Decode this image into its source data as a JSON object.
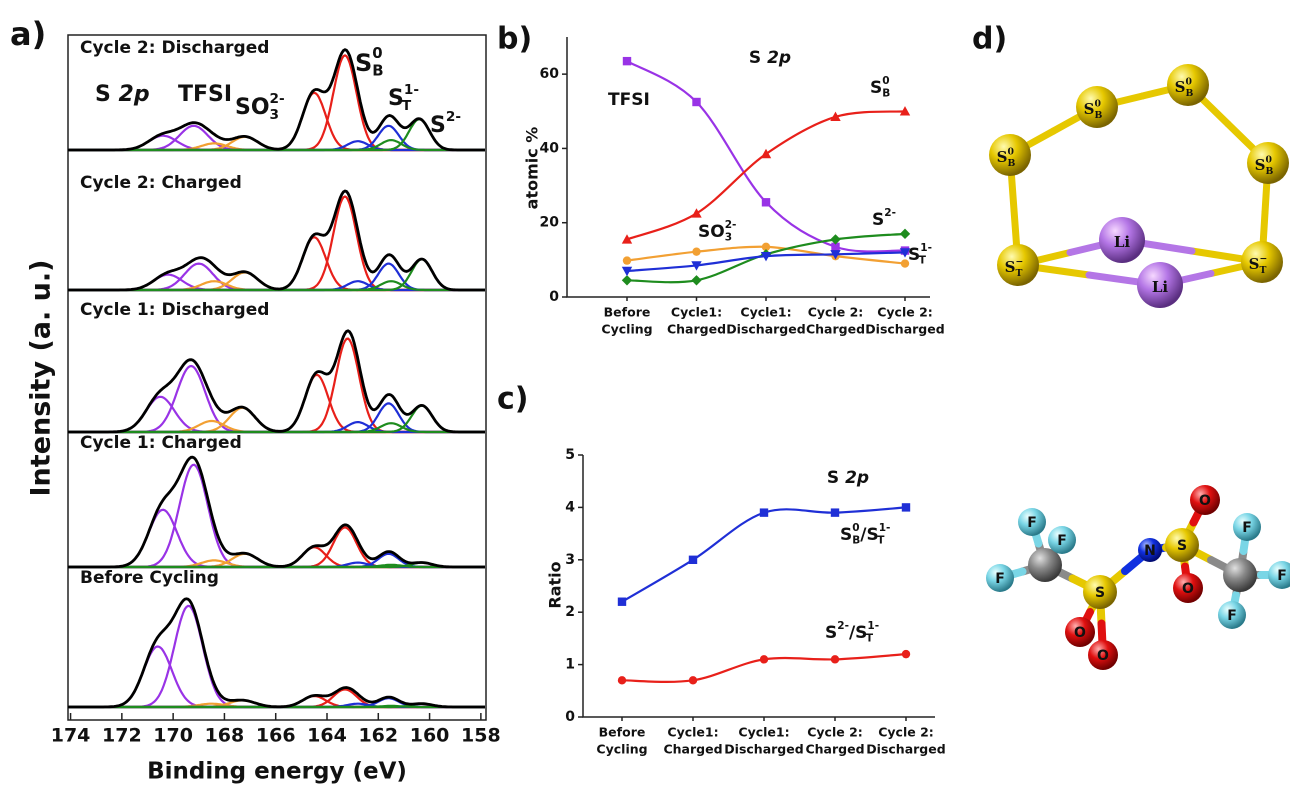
{
  "chart_data": [
    {
      "type": "spectra",
      "panel": "a)",
      "xlabel": "Binding energy (eV)",
      "ylabel": "Intensity (a. u.)",
      "xlim": [
        174.1,
        157.8
      ],
      "xticks": [
        174,
        172,
        170,
        168,
        166,
        164,
        162,
        160,
        158
      ],
      "annotations": [
        {
          "text": [
            {
              "text": "S "
            },
            {
              "text": "2p",
              "italic": true
            }
          ],
          "color": "#111111"
        },
        {
          "text": [
            {
              "text": "TFSI"
            }
          ],
          "color": "#9933e6"
        },
        {
          "text": [
            {
              "text": "SO",
              "sub": "3",
              "sup": "2-"
            }
          ],
          "color": "#f2a033"
        },
        {
          "text": [
            {
              "text": "S",
              "sub": "B",
              "sup": "0"
            }
          ],
          "color": "#e8201a"
        },
        {
          "text": [
            {
              "text": "S",
              "sub": "T",
              "sup": "1-"
            }
          ],
          "color": "#1f2fd6"
        },
        {
          "text": [
            {
              "text": "S",
              "sup": "2-"
            }
          ],
          "color": "#1e8c1e"
        }
      ],
      "spectra": [
        {
          "label": "Cycle 2: Discharged",
          "peaks": [
            {
              "center": 170.4,
              "height": 13,
              "width": 0.55,
              "color": "#9933e6"
            },
            {
              "center": 169.2,
              "height": 22,
              "width": 0.55,
              "color": "#9933e6"
            },
            {
              "center": 168.4,
              "height": 6,
              "width": 0.5,
              "color": "#f2a033"
            },
            {
              "center": 167.2,
              "height": 12,
              "width": 0.5,
              "color": "#f2a033"
            },
            {
              "center": 164.5,
              "height": 52,
              "width": 0.45,
              "color": "#e8201a"
            },
            {
              "center": 163.3,
              "height": 86,
              "width": 0.45,
              "color": "#e8201a"
            },
            {
              "center": 162.8,
              "height": 8,
              "width": 0.4,
              "color": "#1f2fd6"
            },
            {
              "center": 161.6,
              "height": 22,
              "width": 0.4,
              "color": "#1f2fd6"
            },
            {
              "center": 161.5,
              "height": 9,
              "width": 0.4,
              "color": "#1e8c1e"
            },
            {
              "center": 160.4,
              "height": 28,
              "width": 0.4,
              "color": "#1e8c1e"
            }
          ]
        },
        {
          "label": "Cycle 2: Charged",
          "peaks": [
            {
              "center": 170.2,
              "height": 14,
              "width": 0.55,
              "color": "#9933e6"
            },
            {
              "center": 169.0,
              "height": 24,
              "width": 0.55,
              "color": "#9933e6"
            },
            {
              "center": 168.4,
              "height": 8,
              "width": 0.5,
              "color": "#f2a033"
            },
            {
              "center": 167.2,
              "height": 16,
              "width": 0.5,
              "color": "#f2a033"
            },
            {
              "center": 164.5,
              "height": 48,
              "width": 0.45,
              "color": "#e8201a"
            },
            {
              "center": 163.3,
              "height": 85,
              "width": 0.45,
              "color": "#e8201a"
            },
            {
              "center": 162.8,
              "height": 8,
              "width": 0.4,
              "color": "#1f2fd6"
            },
            {
              "center": 161.6,
              "height": 24,
              "width": 0.4,
              "color": "#1f2fd6"
            },
            {
              "center": 161.5,
              "height": 8,
              "width": 0.4,
              "color": "#1e8c1e"
            },
            {
              "center": 160.3,
              "height": 28,
              "width": 0.4,
              "color": "#1e8c1e"
            }
          ]
        },
        {
          "label": "Cycle 1: Discharged",
          "peaks": [
            {
              "center": 170.5,
              "height": 32,
              "width": 0.55,
              "color": "#9933e6"
            },
            {
              "center": 169.3,
              "height": 60,
              "width": 0.55,
              "color": "#9933e6"
            },
            {
              "center": 168.5,
              "height": 10,
              "width": 0.5,
              "color": "#f2a033"
            },
            {
              "center": 167.3,
              "height": 22,
              "width": 0.5,
              "color": "#f2a033"
            },
            {
              "center": 164.4,
              "height": 52,
              "width": 0.45,
              "color": "#e8201a"
            },
            {
              "center": 163.2,
              "height": 85,
              "width": 0.45,
              "color": "#e8201a"
            },
            {
              "center": 162.8,
              "height": 9,
              "width": 0.4,
              "color": "#1f2fd6"
            },
            {
              "center": 161.6,
              "height": 26,
              "width": 0.4,
              "color": "#1f2fd6"
            },
            {
              "center": 161.5,
              "height": 8,
              "width": 0.4,
              "color": "#1e8c1e"
            },
            {
              "center": 160.3,
              "height": 24,
              "width": 0.4,
              "color": "#1e8c1e"
            }
          ]
        },
        {
          "label": "Cycle 1: Charged",
          "peaks": [
            {
              "center": 170.4,
              "height": 52,
              "width": 0.55,
              "color": "#9933e6"
            },
            {
              "center": 169.2,
              "height": 93,
              "width": 0.55,
              "color": "#9933e6"
            },
            {
              "center": 168.4,
              "height": 6,
              "width": 0.5,
              "color": "#f2a033"
            },
            {
              "center": 167.2,
              "height": 12,
              "width": 0.5,
              "color": "#f2a033"
            },
            {
              "center": 164.5,
              "height": 18,
              "width": 0.45,
              "color": "#e8201a"
            },
            {
              "center": 163.3,
              "height": 36,
              "width": 0.45,
              "color": "#e8201a"
            },
            {
              "center": 162.8,
              "height": 4,
              "width": 0.4,
              "color": "#1f2fd6"
            },
            {
              "center": 161.6,
              "height": 12,
              "width": 0.4,
              "color": "#1f2fd6"
            },
            {
              "center": 161.5,
              "height": 2,
              "width": 0.4,
              "color": "#1e8c1e"
            },
            {
              "center": 160.3,
              "height": 4,
              "width": 0.4,
              "color": "#1e8c1e"
            }
          ]
        },
        {
          "label": "Before Cycling",
          "peaks": [
            {
              "center": 170.6,
              "height": 55,
              "width": 0.55,
              "color": "#9933e6"
            },
            {
              "center": 169.4,
              "height": 92,
              "width": 0.55,
              "color": "#9933e6"
            },
            {
              "center": 168.5,
              "height": 3,
              "width": 0.5,
              "color": "#f2a033"
            },
            {
              "center": 167.3,
              "height": 6,
              "width": 0.5,
              "color": "#f2a033"
            },
            {
              "center": 164.5,
              "height": 10,
              "width": 0.45,
              "color": "#e8201a"
            },
            {
              "center": 163.3,
              "height": 16,
              "width": 0.45,
              "color": "#e8201a"
            },
            {
              "center": 162.8,
              "height": 3,
              "width": 0.4,
              "color": "#1f2fd6"
            },
            {
              "center": 161.6,
              "height": 8,
              "width": 0.4,
              "color": "#1f2fd6"
            },
            {
              "center": 161.5,
              "height": 1,
              "width": 0.4,
              "color": "#1e8c1e"
            },
            {
              "center": 160.3,
              "height": 3,
              "width": 0.4,
              "color": "#1e8c1e"
            }
          ]
        }
      ]
    },
    {
      "type": "line",
      "panel": "b)",
      "title": [
        {
          "text": "S "
        },
        {
          "text": "2p",
          "italic": true
        }
      ],
      "ylabel": "atomic %",
      "categories": [
        [
          "Before",
          "Cycling"
        ],
        [
          "Cycle1:",
          "Charged"
        ],
        [
          "Cycle1:",
          "Discharged"
        ],
        [
          "Cycle 2:",
          "Charged"
        ],
        [
          "Cycle 2:",
          "Discharged"
        ]
      ],
      "ylim": [
        0,
        70
      ],
      "yticks": [
        0,
        20,
        40,
        60
      ],
      "series": [
        {
          "name": [
            {
              "text": "TFSI"
            }
          ],
          "color": "#9933e6",
          "marker": "square",
          "values": [
            63.5,
            52.5,
            25.5,
            13.5,
            12.5
          ]
        },
        {
          "name": [
            {
              "text": "S",
              "sub": "B",
              "sup": "0"
            }
          ],
          "color": "#e8201a",
          "marker": "triangle",
          "values": [
            15.5,
            22.5,
            38.5,
            48.5,
            50
          ]
        },
        {
          "name": [
            {
              "text": "SO",
              "sub": "3",
              "sup": "2-"
            }
          ],
          "color": "#f2a033",
          "marker": "circle",
          "values": [
            9.8,
            12.2,
            13.5,
            11,
            9
          ]
        },
        {
          "name": [
            {
              "text": "S",
              "sup": "2-"
            }
          ],
          "color": "#1e8c1e",
          "marker": "diamond",
          "values": [
            4.5,
            4.5,
            11.5,
            15.5,
            17
          ]
        },
        {
          "name": [
            {
              "text": "S",
              "sub": "T",
              "sup": "1-"
            }
          ],
          "color": "#1f2fd6",
          "marker": "triangle-down",
          "values": [
            7,
            8.5,
            11,
            11.5,
            12
          ]
        }
      ]
    },
    {
      "type": "line",
      "panel": "c)",
      "title": [
        {
          "text": "S "
        },
        {
          "text": "2p",
          "italic": true
        }
      ],
      "ylabel": "Ratio",
      "categories": [
        [
          "Before",
          "Cycling"
        ],
        [
          "Cycle1:",
          "Charged"
        ],
        [
          "Cycle1:",
          "Discharged"
        ],
        [
          "Cycle 2:",
          "Charged"
        ],
        [
          "Cycle 2:",
          "Discharged"
        ]
      ],
      "ylim": [
        0,
        5
      ],
      "yticks": [
        0,
        1,
        2,
        3,
        4,
        5
      ],
      "series": [
        {
          "name": [
            {
              "text": "S",
              "sub": "B",
              "sup": "0"
            },
            {
              "text": "/S",
              "sub": "T",
              "sup": "1-"
            }
          ],
          "color": "#1f2fd6",
          "marker": "square",
          "values": [
            2.2,
            3.0,
            3.9,
            3.9,
            4.0
          ]
        },
        {
          "name": [
            {
              "text": "S",
              "sup": "2-"
            },
            {
              "text": "/S",
              "sub": "T",
              "sup": "1-"
            }
          ],
          "color": "#e8201a",
          "marker": "circle",
          "values": [
            0.7,
            0.7,
            1.1,
            1.1,
            1.2
          ]
        }
      ]
    }
  ],
  "structures": {
    "panel": "d)",
    "ring_labels": [
      [
        {
          "text": "S",
          "sub": "B",
          "sup": "0"
        }
      ],
      [
        {
          "text": "S",
          "sub": "B",
          "sup": "0"
        }
      ],
      [
        {
          "text": "S",
          "sub": "B",
          "sup": "0"
        }
      ],
      [
        {
          "text": "S",
          "sub": "B",
          "sup": "0"
        }
      ],
      [
        {
          "text": "S",
          "sub": "T",
          "sup": "−"
        }
      ],
      [
        {
          "text": "S",
          "sub": "T",
          "sup": "−"
        }
      ],
      [
        {
          "text": "Li"
        }
      ],
      [
        {
          "text": "Li"
        }
      ]
    ],
    "molecule_labels": [
      "F",
      "F",
      "F",
      "S",
      "O",
      "O",
      "N",
      "S",
      "O",
      "O",
      "F",
      "F",
      "F"
    ]
  }
}
